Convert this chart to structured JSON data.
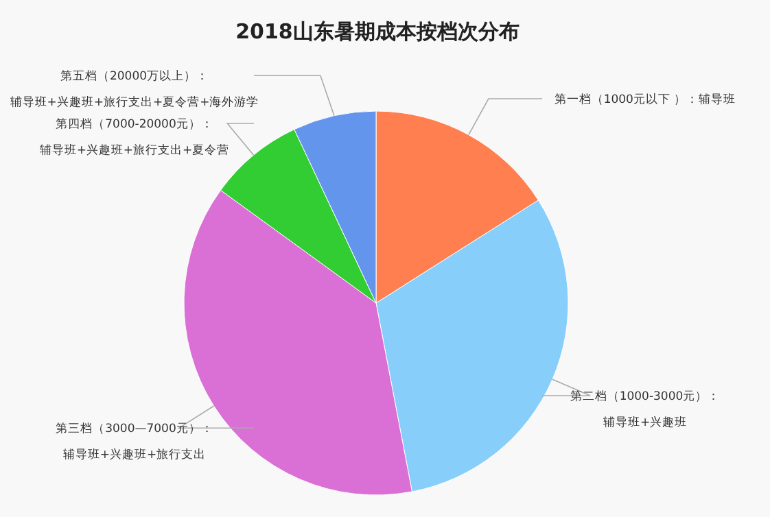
{
  "chart_data": {
    "type": "pie",
    "title": "2018山东暑期成本按档次分布",
    "categories": [
      "第一档（1000元以下 ）：辅导班",
      "第二档（1000-3000元）：辅导班+兴趣班",
      "第三档（3000—7000元）：辅导班+兴趣班+旅行支出",
      "第四档（7000-20000元）：辅导班+兴趣班+旅行支出+夏令营",
      "第五档（20000万以上）：辅导班+兴趣班+旅行支出+夏令营+海外游学"
    ],
    "values": [
      16,
      31,
      38,
      8,
      7
    ],
    "colors": [
      "#ff7f50",
      "#87cefa",
      "#da70d6",
      "#32cd32",
      "#6495ed"
    ]
  }
}
